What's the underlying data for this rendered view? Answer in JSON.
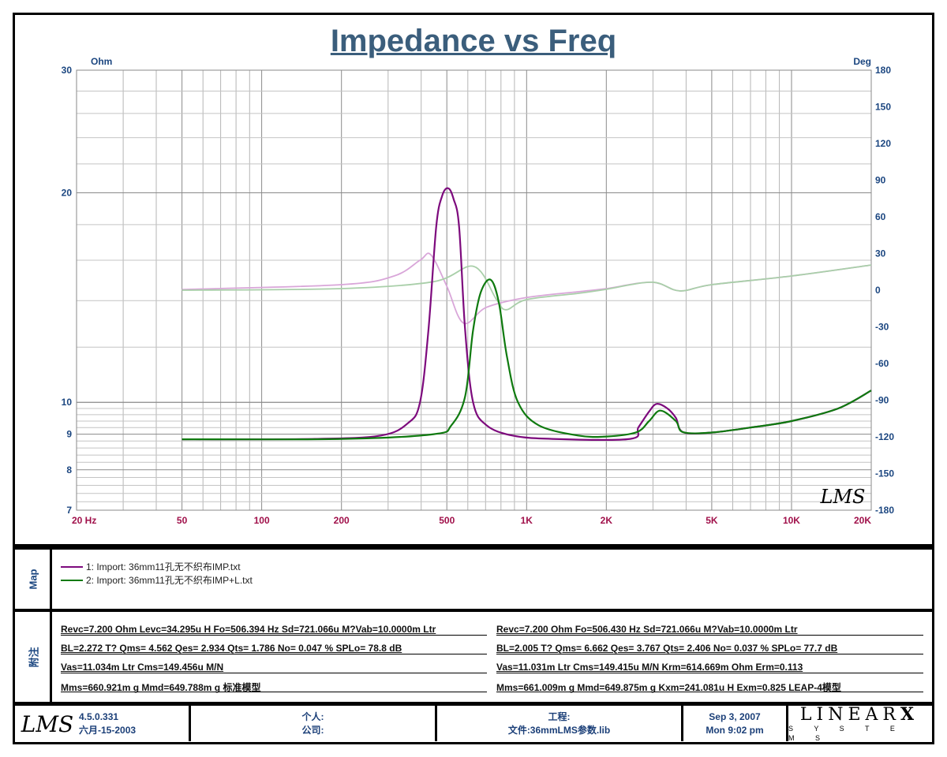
{
  "chart_data": {
    "type": "line",
    "title": "Impedance vs Freq",
    "xscale": "log",
    "xlim": [
      20,
      20000
    ],
    "x_ticks": [
      {
        "v": 20,
        "label": "20  Hz"
      },
      {
        "v": 50,
        "label": "50"
      },
      {
        "v": 100,
        "label": "100"
      },
      {
        "v": 200,
        "label": "200"
      },
      {
        "v": 500,
        "label": "500"
      },
      {
        "v": 1000,
        "label": "1K"
      },
      {
        "v": 2000,
        "label": "2K"
      },
      {
        "v": 5000,
        "label": "5K"
      },
      {
        "v": 10000,
        "label": "10K"
      },
      {
        "v": 20000,
        "label": "20K"
      }
    ],
    "ylabel_left": "Ohm",
    "yscale_left": "log",
    "ylim_left": [
      7,
      30
    ],
    "y_ticks_left": [
      30,
      20,
      10,
      9,
      8,
      7
    ],
    "ylabel_right": "Deg",
    "ylim_right": [
      -180,
      180
    ],
    "y_ticks_right": [
      180,
      150,
      120,
      90,
      60,
      30,
      0,
      -30,
      -60,
      -90,
      -120,
      -150,
      -180
    ],
    "grid": true,
    "series": [
      {
        "name": "1: Import: 36mm11孔无不织布IMP.txt",
        "kind": "impedance",
        "axis": "left",
        "color": "#7d0a7d",
        "points": [
          [
            50,
            8.85
          ],
          [
            159,
            8.86
          ],
          [
            282,
            8.96
          ],
          [
            356,
            9.33
          ],
          [
            396,
            10.0
          ],
          [
            426,
            12.7
          ],
          [
            456,
            17.9
          ],
          [
            480,
            19.8
          ],
          [
            506,
            20.3
          ],
          [
            530,
            19.6
          ],
          [
            556,
            17.9
          ],
          [
            586,
            12.7
          ],
          [
            628,
            10.0
          ],
          [
            706,
            9.27
          ],
          [
            884,
            8.96
          ],
          [
            1250,
            8.86
          ],
          [
            2460,
            8.86
          ],
          [
            2640,
            9.2
          ],
          [
            2900,
            9.7
          ],
          [
            3100,
            9.95
          ],
          [
            3400,
            9.8
          ],
          [
            3660,
            9.5
          ],
          [
            3900,
            9.06
          ],
          [
            5000,
            9.05
          ],
          [
            7000,
            9.2
          ],
          [
            10000,
            9.4
          ],
          [
            15000,
            9.8
          ],
          [
            20000,
            10.4
          ]
        ]
      },
      {
        "name": "2: Import: 36mm11孔无不织布IMP+L.txt",
        "kind": "impedance",
        "axis": "left",
        "color": "#0f7a0f",
        "points": [
          [
            50,
            8.85
          ],
          [
            200,
            8.86
          ],
          [
            446,
            9.0
          ],
          [
            520,
            9.27
          ],
          [
            586,
            10.2
          ],
          [
            628,
            12.7
          ],
          [
            672,
            14.4
          ],
          [
            732,
            15.0
          ],
          [
            786,
            13.9
          ],
          [
            844,
            11.6
          ],
          [
            928,
            10.0
          ],
          [
            1110,
            9.27
          ],
          [
            1564,
            8.96
          ],
          [
            2000,
            8.93
          ],
          [
            2600,
            9.06
          ],
          [
            2900,
            9.4
          ],
          [
            3200,
            9.73
          ],
          [
            3660,
            9.4
          ],
          [
            3900,
            9.06
          ],
          [
            5000,
            9.05
          ],
          [
            7000,
            9.2
          ],
          [
            10000,
            9.4
          ],
          [
            15000,
            9.8
          ],
          [
            20000,
            10.4
          ]
        ]
      },
      {
        "name": "1 phase",
        "kind": "phase",
        "axis": "right",
        "color": "#d9a6d9",
        "points": [
          [
            50,
            0.6
          ],
          [
            200,
            4.5
          ],
          [
            316,
            11.6
          ],
          [
            396,
            24.5
          ],
          [
            435,
            29
          ],
          [
            500,
            3.2
          ],
          [
            578,
            -27
          ],
          [
            706,
            -14
          ],
          [
            1000,
            -6
          ],
          [
            1564,
            -1.3
          ],
          [
            2000,
            1.3
          ],
          [
            2970,
            6.5
          ],
          [
            3780,
            -0.6
          ],
          [
            5000,
            4.5
          ],
          [
            10000,
            11.6
          ],
          [
            20000,
            20.6
          ]
        ]
      },
      {
        "name": "2 phase",
        "kind": "phase",
        "axis": "right",
        "color": "#a9cfa9",
        "points": [
          [
            50,
            0
          ],
          [
            200,
            1.3
          ],
          [
            446,
            7
          ],
          [
            632,
            19.4
          ],
          [
            770,
            -7.7
          ],
          [
            838,
            -16
          ],
          [
            1000,
            -7.7
          ],
          [
            1564,
            -2.6
          ],
          [
            1980,
            0.6
          ],
          [
            2970,
            6.5
          ],
          [
            3780,
            -0.6
          ],
          [
            5000,
            4.5
          ],
          [
            10000,
            11.6
          ],
          [
            20000,
            20.6
          ]
        ]
      }
    ],
    "watermark": "LMS"
  },
  "legend": {
    "section_label": "Map",
    "items": [
      {
        "label": "1: Import: 36mm11孔无不织布IMP.txt",
        "color": "#7d0a7d"
      },
      {
        "label": "2: Import: 36mm11孔无不织布IMP+L.txt",
        "color": "#0f7a0f"
      }
    ]
  },
  "notes": {
    "section_label": "附注",
    "left": [
      "Revc=7.200 Ohm  Levc=34.295u H  Fo=506.394 Hz  Sd=721.066u M?Vab=10.0000m Ltr",
      "BL=2.272 T?  Qms= 4.562  Qes= 2.934  Qts= 1.786  No= 0.047 %  SPLo= 78.8 dB",
      "Vas=11.034m Ltr  Cms=149.456u M/N",
      "Mms=660.921m g  Mmd=649.788m g  标准模型"
    ],
    "right": [
      "Revc=7.200 Ohm  Fo=506.430 Hz  Sd=721.066u M?Vab=10.0000m Ltr",
      "BL=2.005 T?  Qms= 6.662  Qes= 3.767  Qts= 2.406  No= 0.037 %  SPLo= 77.7 dB",
      "Vas=11.031m Ltr  Cms=149.415u M/N  Krm=614.669m Ohm  Erm=0.113",
      "Mms=661.009m g  Mmd=649.875m g  Kxm=241.081u H  Exm=0.825  LEAP-4模型"
    ]
  },
  "footer": {
    "logo": "LMS",
    "version": "4.5.0.331",
    "build_date": "六月-15-2003",
    "personal_label": "个人:",
    "company_label": "公司:",
    "project_label": "工程:",
    "file_label": "文件:36mmLMS参数.lib",
    "date": "Sep  3, 2007",
    "time": "Mon  9:02 pm",
    "brand_top": "LINEAR",
    "brand_x": "X",
    "brand_bottom": "S Y S T E M S"
  }
}
